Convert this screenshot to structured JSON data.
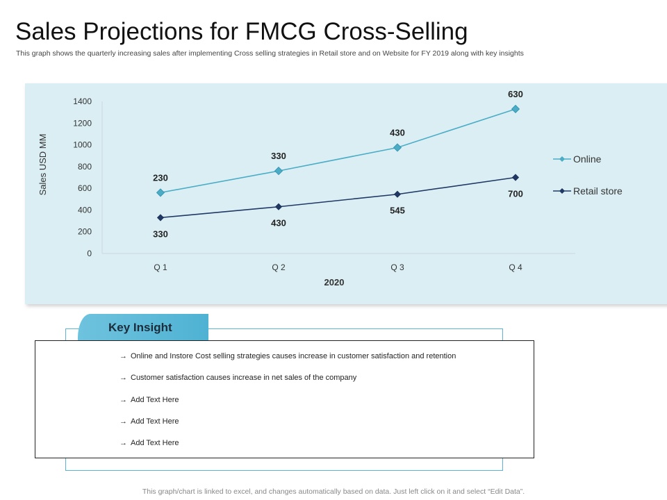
{
  "header": {
    "title": "Sales Projections for FMCG Cross-Selling",
    "subtitle": "This graph shows the quarterly increasing sales after implementing Cross selling strategies in Retail store and on Website for FY 2019 along with key insights"
  },
  "chart_data": {
    "type": "line",
    "categories": [
      "Q 1",
      "Q 2",
      "Q 3",
      "Q 4"
    ],
    "xlabel": "2020",
    "ylabel": "Sales USD MM",
    "ylim": [
      0,
      1400
    ],
    "yticks": [
      0,
      200,
      400,
      600,
      800,
      1000,
      1200,
      1400
    ],
    "stacked": true,
    "series": [
      {
        "name": "Retail store",
        "color": "#1f3864",
        "values": [
          330,
          430,
          545,
          700
        ],
        "plotted": [
          330,
          430,
          545,
          700
        ],
        "labels": [
          "330",
          "430",
          "545",
          "700"
        ],
        "label_position": "below"
      },
      {
        "name": "Online",
        "color": "#4bacc6",
        "values": [
          230,
          330,
          430,
          630
        ],
        "plotted": [
          560,
          760,
          975,
          1330
        ],
        "labels": [
          "230",
          "330",
          "430",
          "630"
        ],
        "label_position": "above"
      }
    ],
    "legend": [
      "Online",
      "Retail store"
    ],
    "legend_position": "right",
    "grid": false
  },
  "insight": {
    "heading": "Key Insight",
    "arrow": "→",
    "items": [
      "Online and Instore Cost selling strategies causes increase in customer satisfaction and retention",
      "Customer satisfaction causes increase in net sales of the company",
      "Add Text Here",
      "Add Text Here",
      "Add Text Here"
    ]
  },
  "footer": {
    "note": "This graph/chart is linked to excel, and changes automatically based on data. Just left click on it and select “Edit Data”."
  }
}
